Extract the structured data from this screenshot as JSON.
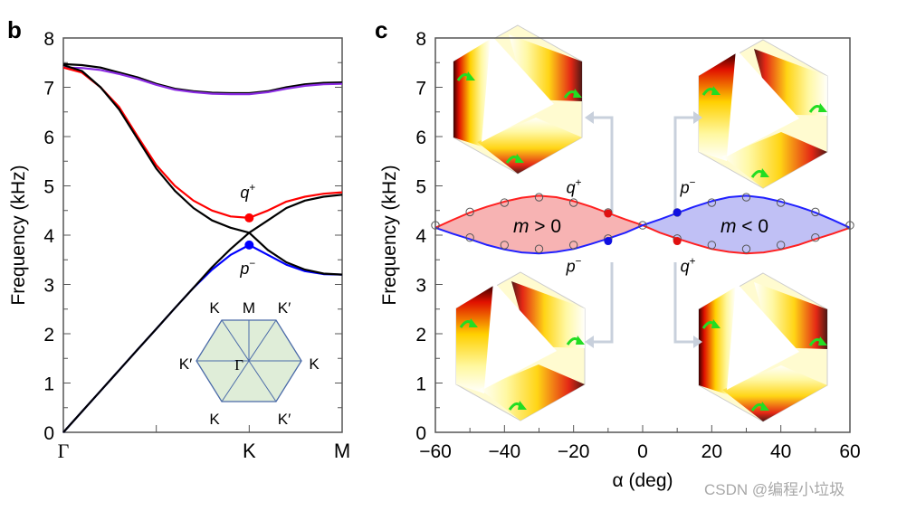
{
  "panels": {
    "b": {
      "label": "b"
    },
    "c": {
      "label": "c"
    }
  },
  "watermark": "CSDN @编程小垃圾",
  "chart_data": [
    {
      "panel": "b",
      "type": "line",
      "ylabel": "Frequency (kHz)",
      "xlabel": "",
      "ylim": [
        0,
        8
      ],
      "yticks": [
        0,
        1,
        2,
        3,
        4,
        5,
        6,
        7,
        8
      ],
      "x_ticks": [
        {
          "pos": 0,
          "label": "Γ"
        },
        {
          "pos": 0.5,
          "label": ""
        },
        {
          "pos": 1,
          "label": "K"
        },
        {
          "pos": 1.5,
          "label": "M"
        }
      ],
      "x": [
        0,
        0.1,
        0.2,
        0.3,
        0.4,
        0.5,
        0.6,
        0.7,
        0.8,
        0.9,
        1.0,
        1.1,
        1.2,
        1.3,
        1.4,
        1.5
      ],
      "series": [
        {
          "color": "#000000",
          "style": "solid",
          "values": [
            7.47,
            7.45,
            7.4,
            7.3,
            7.2,
            7.07,
            6.97,
            6.92,
            6.89,
            6.88,
            6.88,
            6.92,
            7.0,
            7.06,
            7.09,
            7.1
          ]
        },
        {
          "color": "#8a2be2",
          "style": "solid",
          "values": [
            7.4,
            7.39,
            7.35,
            7.27,
            7.17,
            7.05,
            6.95,
            6.9,
            6.87,
            6.86,
            6.86,
            6.9,
            6.97,
            7.03,
            7.06,
            7.07
          ]
        },
        {
          "color": "#ff0000",
          "style": "solid",
          "values": [
            7.4,
            7.3,
            7.0,
            6.6,
            6.0,
            5.42,
            5.0,
            4.7,
            4.5,
            4.38,
            4.35,
            4.5,
            4.68,
            4.78,
            4.84,
            4.87
          ]
        },
        {
          "color": "#000000",
          "style": "solid",
          "values": [
            7.45,
            7.33,
            7.0,
            6.55,
            5.95,
            5.35,
            4.9,
            4.55,
            4.3,
            4.15,
            4.05,
            4.3,
            4.55,
            4.7,
            4.78,
            4.82
          ]
        },
        {
          "color": "#0000ff",
          "style": "solid",
          "values": [
            0,
            0.42,
            0.84,
            1.26,
            1.68,
            2.1,
            2.52,
            2.93,
            3.3,
            3.6,
            3.8,
            3.6,
            3.4,
            3.27,
            3.21,
            3.2
          ]
        },
        {
          "color": "#000000",
          "style": "solid",
          "values": [
            0,
            0.42,
            0.84,
            1.26,
            1.68,
            2.1,
            2.52,
            2.93,
            3.35,
            3.72,
            4.05,
            3.7,
            3.45,
            3.3,
            3.22,
            3.2
          ]
        }
      ],
      "markers": [
        {
          "x": 1,
          "y": 4.35,
          "color": "#ff0000",
          "label": "q",
          "sup": "+"
        },
        {
          "x": 1,
          "y": 3.8,
          "color": "#0000ff",
          "label": "p",
          "sup": "−"
        }
      ],
      "inset": {
        "fill": "#dfedd8",
        "stroke": "#4a6aa8",
        "labels": [
          "K",
          "M",
          "K′",
          "K′",
          "Γ",
          "K",
          "K",
          "K′"
        ]
      }
    },
    {
      "panel": "c",
      "type": "line",
      "xlabel": "α (deg)",
      "ylabel": "Frequency (kHz)",
      "xlim": [
        -60,
        60
      ],
      "ylim": [
        0,
        8
      ],
      "xticks": [
        -60,
        -40,
        -20,
        0,
        20,
        40,
        60
      ],
      "xtick_labels": [
        "−60",
        "−40",
        "−20",
        "0",
        "20",
        "40",
        "60"
      ],
      "yticks": [
        0,
        1,
        2,
        3,
        4,
        5,
        6,
        7,
        8
      ],
      "x": [
        -60,
        -55,
        -50,
        -45,
        -40,
        -35,
        -30,
        -25,
        -20,
        -15,
        -10,
        -5,
        0,
        5,
        10,
        15,
        20,
        25,
        30,
        35,
        40,
        45,
        50,
        55,
        60
      ],
      "series": [
        {
          "color": "#ff2020",
          "values": [
            4.15,
            4.31,
            4.46,
            4.58,
            4.68,
            4.76,
            4.8,
            4.77,
            4.69,
            4.58,
            4.45,
            4.32,
            4.2,
            4.05,
            3.93,
            3.82,
            3.72,
            3.66,
            3.63,
            3.65,
            3.71,
            3.8,
            3.92,
            4.03,
            4.15
          ]
        },
        {
          "color": "#2020ff",
          "values": [
            4.15,
            4.03,
            3.92,
            3.8,
            3.71,
            3.65,
            3.63,
            3.66,
            3.72,
            3.82,
            3.93,
            4.05,
            4.2,
            4.32,
            4.45,
            4.58,
            4.69,
            4.77,
            4.8,
            4.76,
            4.68,
            4.58,
            4.46,
            4.31,
            4.15
          ]
        }
      ],
      "fills": [
        {
          "range": [
            -60,
            0
          ],
          "color": "#f7b3b3",
          "label": "m > 0"
        },
        {
          "range": [
            0,
            60
          ],
          "color": "#c0c0f5",
          "label": "m < 0"
        }
      ],
      "simulation_points": {
        "x": [
          -60,
          -50,
          -50,
          -40,
          -40,
          -30,
          -30,
          -20,
          -20,
          -10,
          -10,
          0,
          10,
          10,
          20,
          20,
          30,
          30,
          40,
          40,
          50,
          50,
          60
        ],
        "y": [
          4.2,
          4.47,
          3.95,
          4.66,
          3.8,
          4.77,
          3.72,
          4.66,
          3.8,
          4.46,
          3.93,
          4.2,
          4.46,
          3.93,
          4.66,
          3.8,
          4.77,
          3.72,
          4.66,
          3.8,
          4.47,
          3.95,
          4.2
        ]
      },
      "markers": [
        {
          "x": -10,
          "y": 4.44,
          "color": "#e01010"
        },
        {
          "x": -10,
          "y": 3.88,
          "color": "#1010e0"
        },
        {
          "x": 10,
          "y": 4.46,
          "color": "#1010e0"
        },
        {
          "x": 10,
          "y": 3.88,
          "color": "#e01010"
        }
      ],
      "annotations": [
        {
          "label": "q",
          "sup": "+",
          "alpha": -20,
          "freq": 5.0
        },
        {
          "label": "p",
          "sup": "−",
          "alpha": -20,
          "freq": 3.4
        },
        {
          "label": "p",
          "sup": "−",
          "alpha": 13,
          "freq": 5.0
        },
        {
          "label": "q",
          "sup": "+",
          "alpha": 13,
          "freq": 3.4
        }
      ],
      "field_maps": [
        "top-left",
        "top-right",
        "bottom-left",
        "bottom-right"
      ]
    }
  ]
}
